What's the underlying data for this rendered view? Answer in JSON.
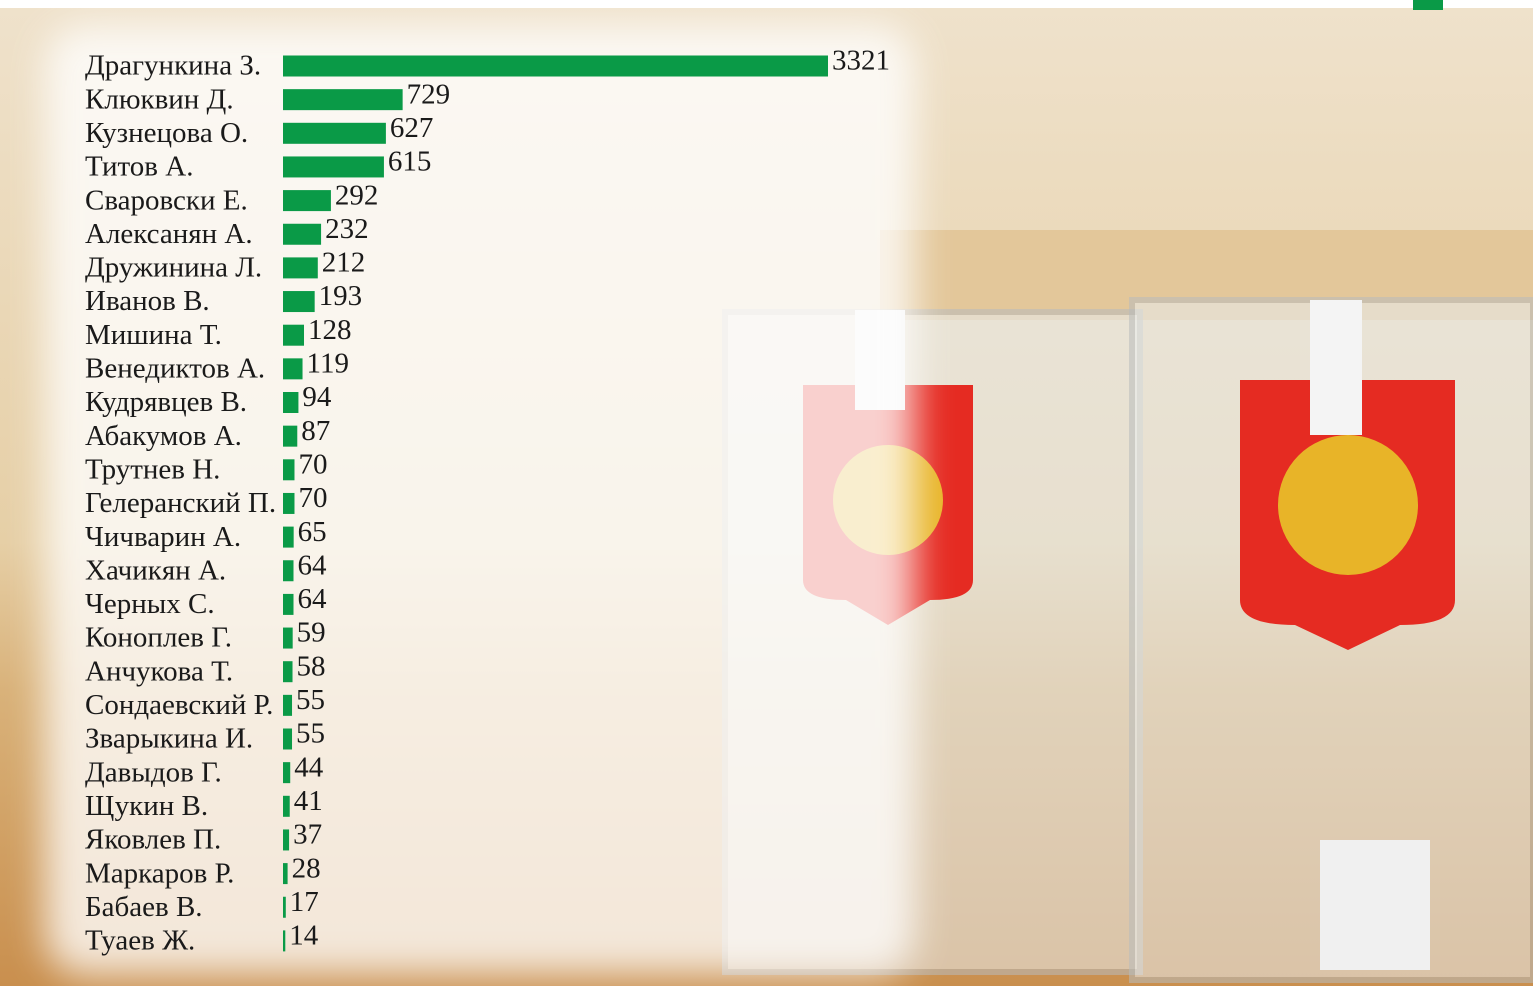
{
  "chart_data": {
    "type": "bar",
    "categories": [
      "Драгункина З.",
      "Клюквин Д.",
      "Кузнецова О.",
      "Титов А.",
      "Сваровски Е.",
      "Алексанян А.",
      "Дружинина Л.",
      "Иванов В.",
      "Мишина Т.",
      "Венедиктов А.",
      "Кудрявцев В.",
      "Абакумов А.",
      "Трутнев Н.",
      "Гелеранский П.",
      "Чичварин А.",
      "Хачикян А.",
      "Черных С.",
      "Коноплев Г.",
      "Анчукова Т.",
      "Сондаевский Р.",
      "Зварыкина И.",
      "Давыдов Г.",
      "Щукин В.",
      "Яковлев П.",
      "Маркаров Р.",
      "Бабаев В.",
      "Туаев Ж."
    ],
    "values": [
      3321,
      729,
      627,
      615,
      292,
      232,
      212,
      193,
      128,
      119,
      94,
      87,
      70,
      70,
      65,
      64,
      64,
      59,
      58,
      55,
      55,
      44,
      41,
      37,
      28,
      17,
      14
    ],
    "color": "#0a9a47"
  }
}
